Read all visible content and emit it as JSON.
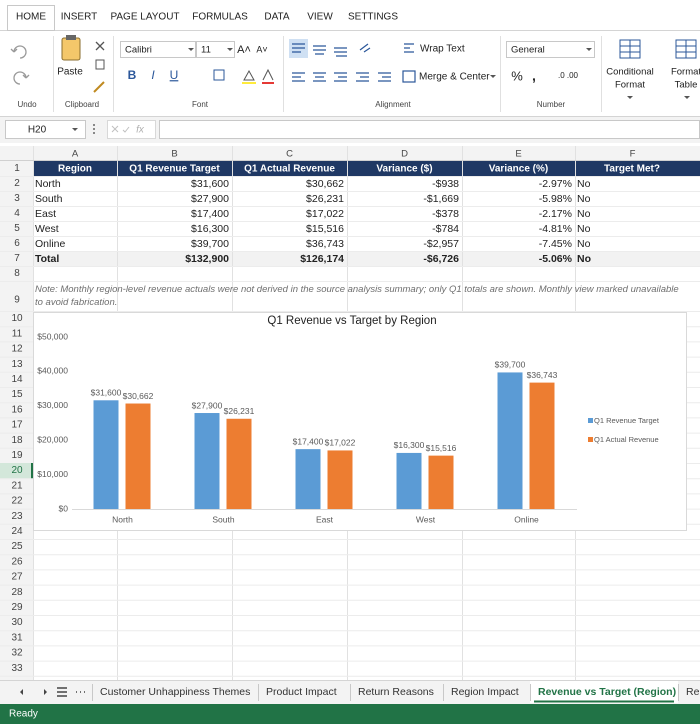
{
  "ribbon": {
    "tabs": [
      "HOME",
      "INSERT",
      "PAGE LAYOUT",
      "FORMULAS",
      "DATA",
      "VIEW",
      "SETTINGS"
    ],
    "paste": "Paste",
    "font_name": "Calibri",
    "font_size": "11",
    "font_buttons": [
      "B",
      "I",
      "U"
    ],
    "wrap_text": "Wrap Text",
    "merge_center": "Merge & Center",
    "number_format": "General",
    "conditional_format": [
      "Conditional",
      "Format"
    ],
    "format_table": [
      "Format",
      "Table"
    ],
    "groups": [
      "Undo",
      "Clipboard",
      "Font",
      "Alignment",
      "Number"
    ]
  },
  "formula_bar": {
    "name_box": "H20",
    "fx": "fx"
  },
  "sheet": {
    "columns": [
      "A",
      "B",
      "C",
      "D",
      "E",
      "F"
    ],
    "rows": [
      1,
      2,
      3,
      4,
      5,
      6,
      7,
      8,
      9,
      10,
      11,
      12,
      13,
      14,
      15,
      16,
      17,
      18,
      19,
      20,
      21,
      22,
      23,
      24,
      25,
      26,
      27,
      28,
      29,
      30,
      31,
      32,
      33
    ]
  },
  "table": {
    "header": [
      "Region",
      "Q1 Revenue Target",
      "Q1 Actual Revenue",
      "Variance ($)",
      "Variance (%)",
      "Target Met?"
    ],
    "rows": [
      [
        "North",
        "$31,600",
        "$30,662",
        "-$938",
        "-2.97%",
        "No"
      ],
      [
        "South",
        "$27,900",
        "$26,231",
        "-$1,669",
        "-5.98%",
        "No"
      ],
      [
        "East",
        "$17,400",
        "$17,022",
        "-$378",
        "-2.17%",
        "No"
      ],
      [
        "West",
        "$16,300",
        "$15,516",
        "-$784",
        "-4.81%",
        "No"
      ],
      [
        "Online",
        "$39,700",
        "$36,743",
        "-$2,957",
        "-7.45%",
        "No"
      ]
    ],
    "total": [
      "Total",
      "$132,900",
      "$126,174",
      "-$6,726",
      "-5.06%",
      "No"
    ],
    "note": "Note: Monthly region-level revenue actuals were not derived in the source analysis summary; only Q1 totals are shown. Monthly view marked unavailable to avoid fabrication."
  },
  "chart_data": {
    "type": "bar",
    "title": "Q1 Revenue vs Target by Region",
    "categories": [
      "North",
      "South",
      "East",
      "West",
      "Online"
    ],
    "series": [
      {
        "name": "Q1 Revenue Target",
        "color": "#5b9bd5",
        "values": [
          31600,
          27900,
          17400,
          16300,
          39700
        ],
        "value_labels": [
          "$31,600",
          "$27,900",
          "$17,400",
          "$16,300",
          "$39,700"
        ]
      },
      {
        "name": "Q1 Actual Revenue",
        "color": "#ed7d31",
        "values": [
          30662,
          26231,
          17022,
          15516,
          36743
        ],
        "value_labels": [
          "$30,662",
          "$26,231",
          "$17,022",
          "$15,516",
          "$36,743"
        ]
      }
    ],
    "ylim": [
      0,
      50000
    ],
    "yticks": [
      {
        "value": 0,
        "label": "$0"
      },
      {
        "value": 10000,
        "label": "$10,000"
      },
      {
        "value": 20000,
        "label": "$20,000"
      },
      {
        "value": 30000,
        "label": "$30,000"
      },
      {
        "value": 40000,
        "label": "$40,000"
      },
      {
        "value": 50000,
        "label": "$50,000"
      }
    ],
    "grid": false,
    "legend": "right"
  },
  "sheet_tabs": [
    "Customer Unhappiness Themes",
    "Product Impact",
    "Return Reasons",
    "Region Impact",
    "Revenue vs Target (Region)",
    "Re"
  ],
  "status": "Ready"
}
